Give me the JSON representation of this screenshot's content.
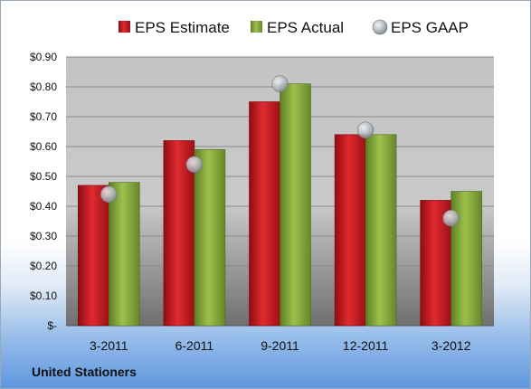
{
  "company_label": "United Stationers",
  "chart_data": {
    "type": "bar",
    "title": "",
    "xlabel": "",
    "ylabel": "",
    "categories": [
      "3-2011",
      "6-2011",
      "9-2011",
      "12-2011",
      "3-2012"
    ],
    "series": [
      {
        "name": "EPS Estimate",
        "kind": "bar",
        "color": "#c8161e",
        "values": [
          0.47,
          0.62,
          0.75,
          0.64,
          0.42
        ]
      },
      {
        "name": "EPS Actual",
        "kind": "bar",
        "color": "#8ab43c",
        "values": [
          0.48,
          0.59,
          0.81,
          0.64,
          0.45
        ]
      },
      {
        "name": "EPS GAAP",
        "kind": "marker",
        "color": "#a8aeb6",
        "values": [
          0.44,
          0.54,
          0.81,
          0.655,
          0.36
        ]
      }
    ],
    "yticks": [
      "$-",
      "$0.10",
      "$0.20",
      "$0.30",
      "$0.40",
      "$0.50",
      "$0.60",
      "$0.70",
      "$0.80",
      "$0.90"
    ],
    "ylim": [
      0,
      0.9
    ],
    "grid": true,
    "legend_position": "top"
  }
}
